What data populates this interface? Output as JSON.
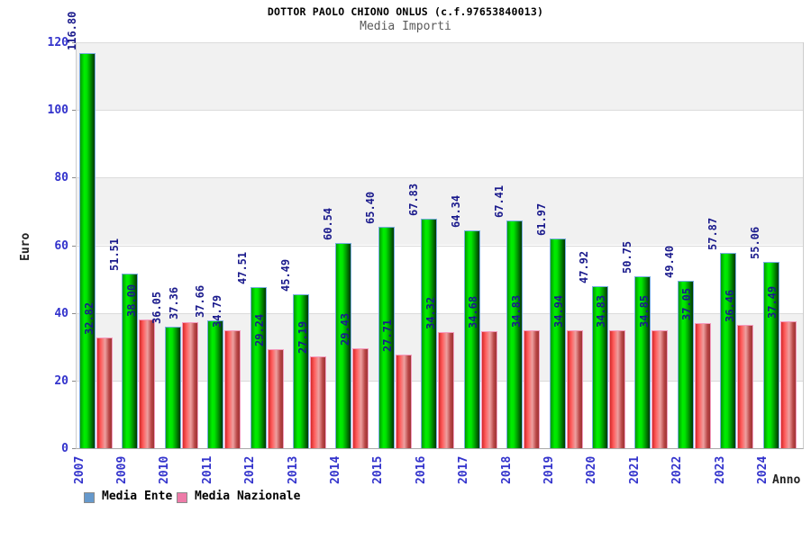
{
  "title": "DOTTOR PAOLO CHIONO ONLUS (c.f.97653840013)",
  "subtitle": "Media Importi",
  "axes": {
    "y_label": "Euro",
    "x_label": "Anno"
  },
  "legend": {
    "items": [
      {
        "label": "Media Ente",
        "swatch_color": "#6699cc"
      },
      {
        "label": "Media Nazionale",
        "swatch_color": "#ee7ba8"
      }
    ]
  },
  "colors": {
    "ente_bar_main": "#00cc00",
    "naz_bar_main": "#e05050",
    "value_label": "#1a1a8c",
    "tick_label": "#3333cc",
    "band_gray": "#f1f1f1",
    "band_white": "#ffffff"
  },
  "chart_data": {
    "type": "bar",
    "title": "DOTTOR PAOLO CHIONO ONLUS (c.f.97653840013)",
    "subtitle": "Media Importi",
    "xlabel": "Anno",
    "ylabel": "Euro",
    "ylim": [
      0,
      120
    ],
    "yticks": [
      0,
      20,
      40,
      60,
      80,
      100,
      120
    ],
    "grid": "alternating horizontal gray/white bands every 20 units, light gridlines",
    "legend_position": "bottom-left",
    "categories": [
      "2007",
      "2009",
      "2010",
      "2011",
      "2012",
      "2013",
      "2014",
      "2015",
      "2016",
      "2017",
      "2018",
      "2019",
      "2020",
      "2021",
      "2022",
      "2023",
      "2024"
    ],
    "series": [
      {
        "name": "Media Ente",
        "values": [
          116.8,
          51.51,
          36.05,
          37.66,
          47.51,
          45.49,
          60.54,
          65.4,
          67.83,
          64.34,
          67.41,
          61.97,
          47.92,
          50.75,
          49.4,
          57.87,
          55.06
        ]
      },
      {
        "name": "Media Nazionale",
        "values": [
          32.82,
          38.0,
          37.36,
          34.79,
          29.24,
          27.19,
          29.43,
          27.71,
          34.32,
          34.68,
          34.83,
          34.94,
          34.83,
          34.85,
          37.05,
          36.46,
          37.49
        ]
      }
    ]
  }
}
